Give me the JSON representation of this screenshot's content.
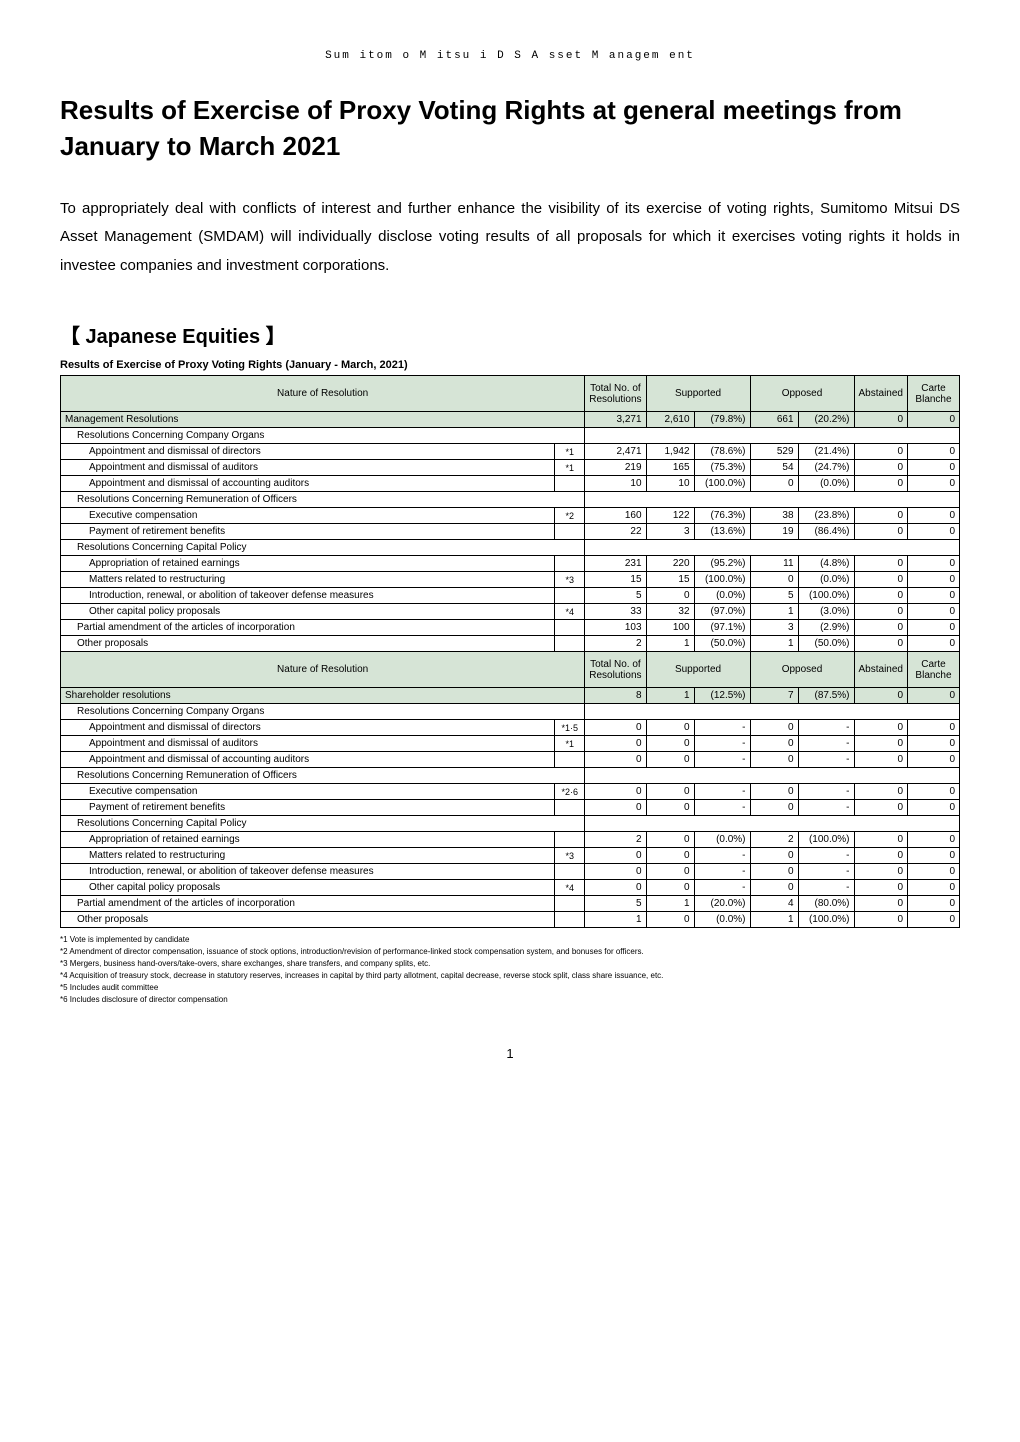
{
  "header_text": "Sum itom o M itsu i D S A sset M anagem ent",
  "title": "Results of Exercise of Proxy Voting Rights at general meetings from January to March 2021",
  "intro": "To appropriately deal with conflicts of interest and further enhance the visibility of its exercise of voting rights, Sumitomo Mitsui DS Asset Management (SMDAM) will individually disclose voting results of all proposals for which it exercises voting rights it holds in investee companies and investment corporations.",
  "section_heading": "【 Japanese Equities 】",
  "table_caption": "Results of Exercise of Proxy Voting Rights (January - March, 2021)",
  "columns": {
    "nature": "Nature of Resolution",
    "total": "Total No. of Resolutions",
    "supported": "Supported",
    "opposed": "Opposed",
    "abstained": "Abstained",
    "carte": "Carte Blanche"
  },
  "colors": {
    "header_bg": "#d6e4d6",
    "border": "#000000",
    "text": "#000000",
    "bg": "#ffffff"
  },
  "mgmt": {
    "header": {
      "label": "Management Resolutions",
      "total": "3,271",
      "sup_n": "2,610",
      "sup_p": "(79.8%)",
      "opp_n": "661",
      "opp_p": "(20.2%)",
      "abs": "0",
      "cb": "0"
    },
    "sec1": "Resolutions Concerning Company Organs",
    "r1a": {
      "label": "Appointment and dismissal of directors",
      "fn": "*1",
      "total": "2,471",
      "sup_n": "1,942",
      "sup_p": "(78.6%)",
      "opp_n": "529",
      "opp_p": "(21.4%)",
      "abs": "0",
      "cb": "0"
    },
    "r1b": {
      "label": "Appointment and dismissal of auditors",
      "fn": "*1",
      "total": "219",
      "sup_n": "165",
      "sup_p": "(75.3%)",
      "opp_n": "54",
      "opp_p": "(24.7%)",
      "abs": "0",
      "cb": "0"
    },
    "r1c": {
      "label": "Appointment and dismissal of accounting auditors",
      "fn": "",
      "total": "10",
      "sup_n": "10",
      "sup_p": "(100.0%)",
      "opp_n": "0",
      "opp_p": "(0.0%)",
      "abs": "0",
      "cb": "0"
    },
    "sec2": "Resolutions Concerning Remuneration of Officers",
    "r2a": {
      "label": "Executive compensation",
      "fn": "*2",
      "total": "160",
      "sup_n": "122",
      "sup_p": "(76.3%)",
      "opp_n": "38",
      "opp_p": "(23.8%)",
      "abs": "0",
      "cb": "0"
    },
    "r2b": {
      "label": "Payment of retirement benefits",
      "fn": "",
      "total": "22",
      "sup_n": "3",
      "sup_p": "(13.6%)",
      "opp_n": "19",
      "opp_p": "(86.4%)",
      "abs": "0",
      "cb": "0"
    },
    "sec3": "Resolutions Concerning Capital Policy",
    "r3a": {
      "label": "Appropriation of retained earnings",
      "fn": "",
      "total": "231",
      "sup_n": "220",
      "sup_p": "(95.2%)",
      "opp_n": "11",
      "opp_p": "(4.8%)",
      "abs": "0",
      "cb": "0"
    },
    "r3b": {
      "label": "Matters related to restructuring",
      "fn": "*3",
      "total": "15",
      "sup_n": "15",
      "sup_p": "(100.0%)",
      "opp_n": "0",
      "opp_p": "(0.0%)",
      "abs": "0",
      "cb": "0"
    },
    "r3c": {
      "label": "Introduction, renewal, or abolition of takeover defense measures",
      "fn": "",
      "total": "5",
      "sup_n": "0",
      "sup_p": "(0.0%)",
      "opp_n": "5",
      "opp_p": "(100.0%)",
      "abs": "0",
      "cb": "0"
    },
    "r3d": {
      "label": "Other capital policy proposals",
      "fn": "*4",
      "total": "33",
      "sup_n": "32",
      "sup_p": "(97.0%)",
      "opp_n": "1",
      "opp_p": "(3.0%)",
      "abs": "0",
      "cb": "0"
    },
    "r4": {
      "label": "Partial amendment of the articles of incorporation",
      "fn": "",
      "total": "103",
      "sup_n": "100",
      "sup_p": "(97.1%)",
      "opp_n": "3",
      "opp_p": "(2.9%)",
      "abs": "0",
      "cb": "0"
    },
    "r5": {
      "label": "Other proposals",
      "fn": "",
      "total": "2",
      "sup_n": "1",
      "sup_p": "(50.0%)",
      "opp_n": "1",
      "opp_p": "(50.0%)",
      "abs": "0",
      "cb": "0"
    }
  },
  "share": {
    "header": {
      "label": "Shareholder resolutions",
      "total": "8",
      "sup_n": "1",
      "sup_p": "(12.5%)",
      "opp_n": "7",
      "opp_p": "(87.5%)",
      "abs": "0",
      "cb": "0"
    },
    "sec1": "Resolutions Concerning Company Organs",
    "r1a": {
      "label": "Appointment and dismissal of directors",
      "fn": "*1·5",
      "total": "0",
      "sup_n": "0",
      "sup_p": "-",
      "opp_n": "0",
      "opp_p": "-",
      "abs": "0",
      "cb": "0"
    },
    "r1b": {
      "label": "Appointment and dismissal of auditors",
      "fn": "*1",
      "total": "0",
      "sup_n": "0",
      "sup_p": "-",
      "opp_n": "0",
      "opp_p": "-",
      "abs": "0",
      "cb": "0"
    },
    "r1c": {
      "label": "Appointment and dismissal of accounting auditors",
      "fn": "",
      "total": "0",
      "sup_n": "0",
      "sup_p": "-",
      "opp_n": "0",
      "opp_p": "-",
      "abs": "0",
      "cb": "0"
    },
    "sec2": "Resolutions Concerning Remuneration of Officers",
    "r2a": {
      "label": "Executive compensation",
      "fn": "*2·6",
      "total": "0",
      "sup_n": "0",
      "sup_p": "-",
      "opp_n": "0",
      "opp_p": "-",
      "abs": "0",
      "cb": "0"
    },
    "r2b": {
      "label": "Payment of retirement benefits",
      "fn": "",
      "total": "0",
      "sup_n": "0",
      "sup_p": "-",
      "opp_n": "0",
      "opp_p": "-",
      "abs": "0",
      "cb": "0"
    },
    "sec3": "Resolutions Concerning Capital Policy",
    "r3a": {
      "label": "Appropriation of retained earnings",
      "fn": "",
      "total": "2",
      "sup_n": "0",
      "sup_p": "(0.0%)",
      "opp_n": "2",
      "opp_p": "(100.0%)",
      "abs": "0",
      "cb": "0"
    },
    "r3b": {
      "label": "Matters related to restructuring",
      "fn": "*3",
      "total": "0",
      "sup_n": "0",
      "sup_p": "-",
      "opp_n": "0",
      "opp_p": "-",
      "abs": "0",
      "cb": "0"
    },
    "r3c": {
      "label": "Introduction, renewal, or abolition of takeover defense measures",
      "fn": "",
      "total": "0",
      "sup_n": "0",
      "sup_p": "-",
      "opp_n": "0",
      "opp_p": "-",
      "abs": "0",
      "cb": "0"
    },
    "r3d": {
      "label": "Other capital policy proposals",
      "fn": "*4",
      "total": "0",
      "sup_n": "0",
      "sup_p": "-",
      "opp_n": "0",
      "opp_p": "-",
      "abs": "0",
      "cb": "0"
    },
    "r4": {
      "label": "Partial amendment of the articles of incorporation",
      "fn": "",
      "total": "5",
      "sup_n": "1",
      "sup_p": "(20.0%)",
      "opp_n": "4",
      "opp_p": "(80.0%)",
      "abs": "0",
      "cb": "0"
    },
    "r5": {
      "label": "Other proposals",
      "fn": "",
      "total": "1",
      "sup_n": "0",
      "sup_p": "(0.0%)",
      "opp_n": "1",
      "opp_p": "(100.0%)",
      "abs": "0",
      "cb": "0"
    }
  },
  "footnotes": {
    "f1": "*1 Vote is implemented by candidate",
    "f2": "*2 Amendment of director compensation, issuance of stock options, introduction/revision of performance-linked stock compensation system, and bonuses for officers.",
    "f3": "*3 Mergers, business hand-overs/take-overs, share exchanges, share transfers, and company splits, etc.",
    "f4": "*4 Acquisition of treasury stock, decrease in statutory reserves, increases in capital by third party allotment, capital decrease, reverse stock split, class share issuance, etc.",
    "f5": "*5 Includes audit committee",
    "f6": "*6 Includes disclosure of director compensation"
  },
  "page_number": "1"
}
